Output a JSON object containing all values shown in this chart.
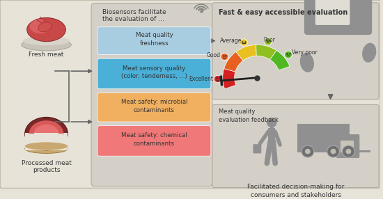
{
  "bg_color": "#e8e3d8",
  "panel_bg": "#d4d0c8",
  "title": "Fast & easy accessible evaluation",
  "box_title_line1": "Biosensors facilitate",
  "box_title_line2": "the evaluation of ...",
  "boxes": [
    {
      "text": "Meat quality\nfreshness",
      "color": "#a8cce0"
    },
    {
      "text": "Meat sensory quality\n(color, tenderness, ...)",
      "color": "#4ab0d8"
    },
    {
      "text": "Meat safety: microbial\ncontaminants",
      "color": "#f0b060"
    },
    {
      "text": "Meat safety: chemical\ncontaminants",
      "color": "#f07878"
    }
  ],
  "gauge_labels": [
    "Very poor",
    "Poor",
    "Average",
    "Good",
    "Excellent"
  ],
  "gauge_colors": [
    "#d42020",
    "#e86020",
    "#e8c020",
    "#90c020",
    "#50b820"
  ],
  "left_label1": "Fresh meat",
  "left_label2": "Processed meat\nproducts",
  "feedback_label": "Meat quality\nevaluation feedback",
  "bottom_label": "Facilitated decision-making for\nconsumers and stakeholders",
  "arrow_color": "#666666",
  "text_color": "#333333",
  "gray_icon": "#909090",
  "gray_dark": "#707070"
}
